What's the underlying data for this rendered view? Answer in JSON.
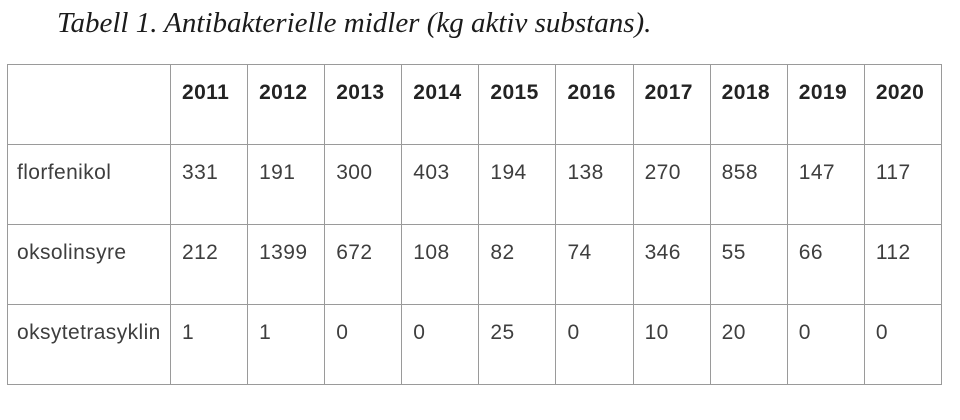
{
  "title": "Tabell 1. Antibakterielle midler (kg aktiv substans).",
  "table": {
    "header": [
      "",
      "2011",
      "2012",
      "2013",
      "2014",
      "2015",
      "2016",
      "2017",
      "2018",
      "2019",
      "2020"
    ],
    "rows": [
      {
        "label": "florfenikol",
        "values": [
          "331",
          "191",
          "300",
          "403",
          "194",
          "138",
          "270",
          "858",
          "147",
          "117"
        ]
      },
      {
        "label": "oksolinsyre",
        "values": [
          "212",
          "1399",
          "672",
          "108",
          "82",
          "74",
          "346",
          "55",
          "66",
          "112"
        ]
      },
      {
        "label": "oksytetrasyklin",
        "values": [
          "1",
          "1",
          "0",
          "0",
          "25",
          "0",
          "10",
          "20",
          "0",
          "0"
        ]
      }
    ]
  },
  "chart_data": {
    "type": "table",
    "title": "Tabell 1. Antibakterielle midler (kg aktiv substans).",
    "categories": [
      "2011",
      "2012",
      "2013",
      "2014",
      "2015",
      "2016",
      "2017",
      "2018",
      "2019",
      "2020"
    ],
    "series": [
      {
        "name": "florfenikol",
        "values": [
          331,
          191,
          300,
          403,
          194,
          138,
          270,
          858,
          147,
          117
        ]
      },
      {
        "name": "oksolinsyre",
        "values": [
          212,
          1399,
          672,
          108,
          82,
          74,
          346,
          55,
          66,
          112
        ]
      },
      {
        "name": "oksytetrasyklin",
        "values": [
          1,
          1,
          0,
          0,
          25,
          0,
          10,
          20,
          0,
          0
        ]
      }
    ]
  },
  "colors": {
    "background": "#ffffff",
    "border": "#9a9a9a",
    "header_text": "#232323",
    "body_text": "#3e3e3e",
    "caption_text": "#1b1b1b"
  }
}
